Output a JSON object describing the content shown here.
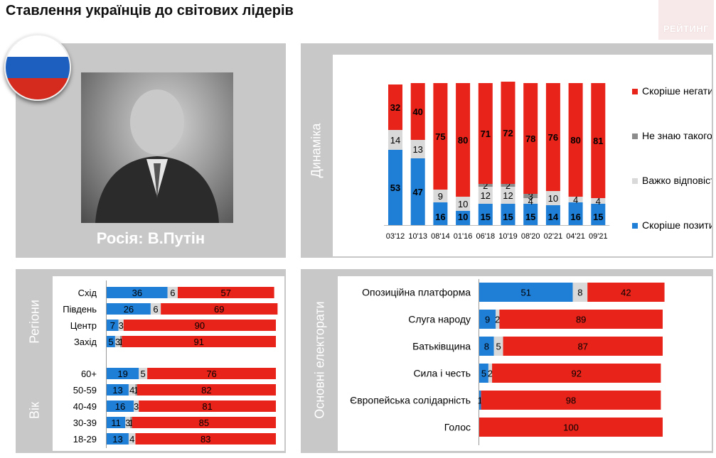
{
  "title": "Ставлення українців до світових лідерів",
  "logo_text": "РЕЙТИНГ",
  "leader_caption": "Росія: В.Путін",
  "flag_colors": [
    "#ffffff",
    "#1d5fbf",
    "#d52b1e"
  ],
  "colors": {
    "positive": "#1f7ed6",
    "dont_know": "#8c8c8c",
    "hard_to_say": "#d9d9d9",
    "negative": "#e8231a"
  },
  "labels": {
    "dynamics": "Динаміка",
    "regions": "Регіони",
    "age": "Вік",
    "electorates": "Основні електорати"
  },
  "chart_data": [
    {
      "type": "bar",
      "stacked": true,
      "panel": "dynamics",
      "categories": [
        "03'12",
        "10'13",
        "08'14",
        "01'16",
        "06'18",
        "10'19",
        "08'20",
        "02'21",
        "04'21",
        "09'21"
      ],
      "legend_position": "right",
      "series": [
        {
          "name": "Скоріше позитивне",
          "key": "positive",
          "values": [
            53,
            47,
            16,
            10,
            15,
            15,
            15,
            14,
            16,
            15
          ]
        },
        {
          "name": "Важко відповісти",
          "key": "hard_to_say",
          "values": [
            14,
            13,
            9,
            10,
            12,
            12,
            4,
            10,
            4,
            4
          ]
        },
        {
          "name": "Не знаю такого",
          "key": "dont_know",
          "values": [
            null,
            null,
            null,
            null,
            2,
            2,
            3,
            null,
            null,
            null
          ]
        },
        {
          "name": "Скоріше негативне",
          "key": "negative",
          "values": [
            32,
            40,
            75,
            80,
            71,
            72,
            78,
            76,
            80,
            81
          ]
        }
      ]
    },
    {
      "type": "bar",
      "orientation": "horizontal",
      "stacked": true,
      "panel": "regions-age",
      "categories": [
        "Схід",
        "Південь",
        "Центр",
        "Захід",
        "60+",
        "50-59",
        "40-49",
        "30-39",
        "18-29"
      ],
      "series": [
        {
          "key": "positive",
          "values": [
            36,
            26,
            7,
            5,
            19,
            13,
            16,
            11,
            13
          ]
        },
        {
          "key": "hard_to_say",
          "values": [
            6,
            6,
            3,
            3,
            5,
            4,
            3,
            3,
            4
          ]
        },
        {
          "key": "dont_know",
          "values": [
            null,
            null,
            null,
            1,
            null,
            1,
            null,
            1,
            null
          ]
        },
        {
          "key": "negative",
          "values": [
            57,
            69,
            90,
            91,
            76,
            82,
            81,
            85,
            83
          ]
        }
      ]
    },
    {
      "type": "bar",
      "orientation": "horizontal",
      "stacked": true,
      "panel": "electorates",
      "categories": [
        "Опозиційна платформа",
        "Слуга народу",
        "Батьківщина",
        "Сила і честь",
        "Європейська солідарність",
        "Голос"
      ],
      "series": [
        {
          "key": "positive",
          "values": [
            51,
            9,
            8,
            5,
            1,
            null
          ]
        },
        {
          "key": "hard_to_say",
          "values": [
            8,
            2,
            5,
            2,
            null,
            null
          ]
        },
        {
          "key": "negative",
          "values": [
            42,
            89,
            87,
            92,
            98,
            100
          ]
        }
      ]
    }
  ]
}
